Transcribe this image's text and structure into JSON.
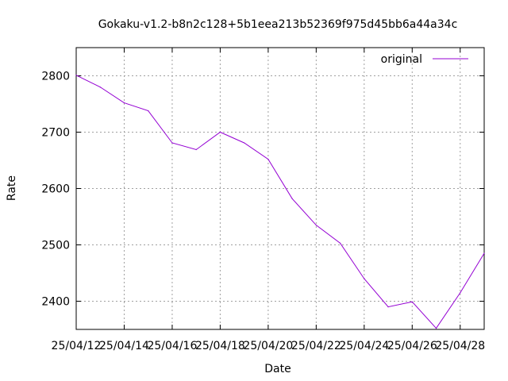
{
  "chart_data": {
    "type": "line",
    "title": "Gokaku-v1.2-b8n2c128+5b1eea213b52369f975d45bb6a44a34c",
    "xlabel": "Date",
    "ylabel": "Rate",
    "x": [
      "25/04/12",
      "25/04/13",
      "25/04/14",
      "25/04/15",
      "25/04/16",
      "25/04/17",
      "25/04/18",
      "25/04/19",
      "25/04/20",
      "25/04/21",
      "25/04/22",
      "25/04/23",
      "25/04/24",
      "25/04/25",
      "25/04/26",
      "25/04/27",
      "25/04/28",
      "25/04/29"
    ],
    "x_ticks": [
      "25/04/12",
      "25/04/14",
      "25/04/16",
      "25/04/18",
      "25/04/20",
      "25/04/22",
      "25/04/24",
      "25/04/26",
      "25/04/28"
    ],
    "xlim": [
      "25/04/12",
      "25/04/29"
    ],
    "y_ticks": [
      2400,
      2500,
      2600,
      2700,
      2800
    ],
    "ylim": [
      2350,
      2850
    ],
    "grid": true,
    "legend_position": "top-right",
    "series": [
      {
        "name": "original",
        "color": "#9400d3",
        "values": [
          2801,
          2780,
          2752,
          2738,
          2681,
          2669,
          2700,
          2681,
          2652,
          2582,
          2535,
          2503,
          2440,
          2390,
          2399,
          2352,
          2415,
          2485
        ]
      }
    ]
  }
}
